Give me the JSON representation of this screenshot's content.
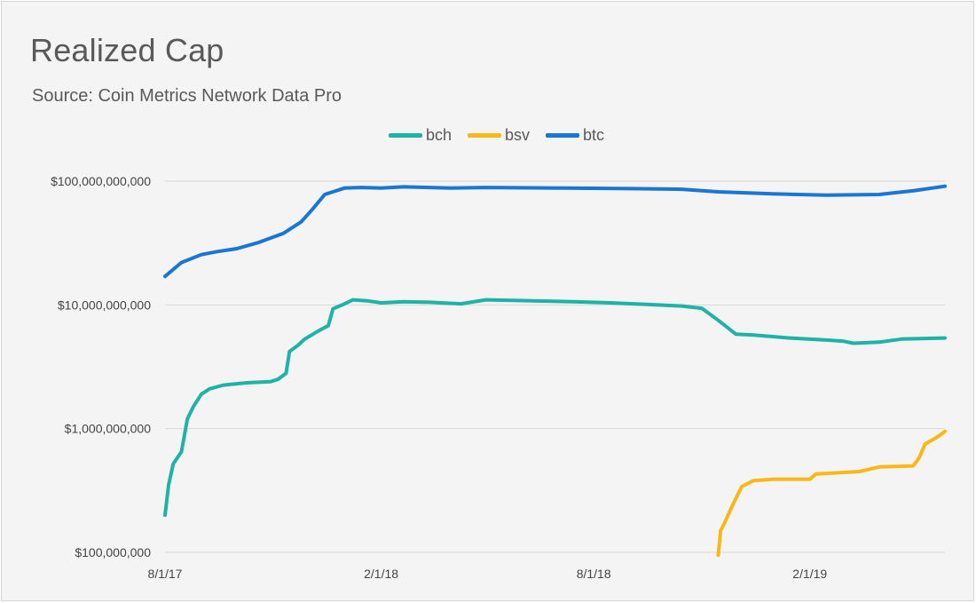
{
  "chart_data": {
    "type": "line",
    "title": "Realized Cap",
    "subtitle": "Source: Coin Metrics Network Data Pro",
    "y_scale": "log",
    "ylim": [
      100000000,
      100000000000
    ],
    "y_ticks": [
      {
        "value": 100000000000,
        "label": "$100,000,000,000"
      },
      {
        "value": 10000000000,
        "label": "$10,000,000,000"
      },
      {
        "value": 1000000000,
        "label": "$1,000,000,000"
      },
      {
        "value": 100000000,
        "label": "$100,000,000"
      }
    ],
    "xlim": [
      "2017-08-01",
      "2019-05-27"
    ],
    "x_ticks": [
      {
        "value": "2017-08-01",
        "label": "8/1/17"
      },
      {
        "value": "2018-02-01",
        "label": "2/1/18"
      },
      {
        "value": "2018-08-01",
        "label": "8/1/18"
      },
      {
        "value": "2019-02-01",
        "label": "2/1/19"
      }
    ],
    "grid": true,
    "legend": "top",
    "series": [
      {
        "name": "bch",
        "color": "#1eb3a6",
        "points": [
          [
            "2017-08-01",
            200000000
          ],
          [
            "2017-08-04",
            350000000
          ],
          [
            "2017-08-08",
            520000000
          ],
          [
            "2017-08-15",
            650000000
          ],
          [
            "2017-08-20",
            1200000000
          ],
          [
            "2017-08-25",
            1500000000
          ],
          [
            "2017-09-01",
            1900000000
          ],
          [
            "2017-09-08",
            2100000000
          ],
          [
            "2017-09-20",
            2250000000
          ],
          [
            "2017-10-10",
            2350000000
          ],
          [
            "2017-10-30",
            2400000000
          ],
          [
            "2017-11-05",
            2500000000
          ],
          [
            "2017-11-12",
            2800000000
          ],
          [
            "2017-11-15",
            4200000000
          ],
          [
            "2017-11-22",
            4700000000
          ],
          [
            "2017-11-28",
            5300000000
          ],
          [
            "2017-12-10",
            6200000000
          ],
          [
            "2017-12-18",
            6800000000
          ],
          [
            "2017-12-22",
            9300000000
          ],
          [
            "2018-01-01",
            10200000000
          ],
          [
            "2018-01-08",
            11000000000
          ],
          [
            "2018-01-20",
            10800000000
          ],
          [
            "2018-02-01",
            10400000000
          ],
          [
            "2018-02-20",
            10600000000
          ],
          [
            "2018-03-15",
            10500000000
          ],
          [
            "2018-04-10",
            10200000000
          ],
          [
            "2018-05-01",
            11000000000
          ],
          [
            "2018-05-20",
            10900000000
          ],
          [
            "2018-07-15",
            10600000000
          ],
          [
            "2018-08-15",
            10400000000
          ],
          [
            "2018-09-15",
            10100000000
          ],
          [
            "2018-10-15",
            9800000000
          ],
          [
            "2018-11-01",
            9400000000
          ],
          [
            "2018-11-15",
            7500000000
          ],
          [
            "2018-11-30",
            5800000000
          ],
          [
            "2018-12-15",
            5700000000
          ],
          [
            "2019-01-15",
            5400000000
          ],
          [
            "2019-02-15",
            5200000000
          ],
          [
            "2019-03-01",
            5100000000
          ],
          [
            "2019-03-10",
            4900000000
          ],
          [
            "2019-04-01",
            5000000000
          ],
          [
            "2019-04-20",
            5300000000
          ],
          [
            "2019-05-27",
            5400000000
          ]
        ]
      },
      {
        "name": "bsv",
        "color": "#f8b817",
        "points": [
          [
            "2018-11-15",
            95000000
          ],
          [
            "2018-11-17",
            150000000
          ],
          [
            "2018-11-20",
            170000000
          ],
          [
            "2018-11-28",
            250000000
          ],
          [
            "2018-12-05",
            340000000
          ],
          [
            "2018-12-15",
            380000000
          ],
          [
            "2019-01-01",
            390000000
          ],
          [
            "2019-02-01",
            390000000
          ],
          [
            "2019-02-06",
            430000000
          ],
          [
            "2019-03-15",
            450000000
          ],
          [
            "2019-04-01",
            490000000
          ],
          [
            "2019-04-30",
            500000000
          ],
          [
            "2019-05-05",
            580000000
          ],
          [
            "2019-05-10",
            750000000
          ],
          [
            "2019-05-20",
            850000000
          ],
          [
            "2019-05-27",
            950000000
          ]
        ]
      },
      {
        "name": "btc",
        "color": "#1976d2",
        "points": [
          [
            "2017-08-01",
            17000000000
          ],
          [
            "2017-08-15",
            22000000000
          ],
          [
            "2017-09-01",
            25500000000
          ],
          [
            "2017-09-15",
            27000000000
          ],
          [
            "2017-10-01",
            28500000000
          ],
          [
            "2017-10-20",
            32000000000
          ],
          [
            "2017-11-10",
            38000000000
          ],
          [
            "2017-11-25",
            47000000000
          ],
          [
            "2017-12-05",
            60000000000
          ],
          [
            "2017-12-15",
            78000000000
          ],
          [
            "2018-01-01",
            88000000000
          ],
          [
            "2018-01-15",
            89000000000
          ],
          [
            "2018-02-01",
            88000000000
          ],
          [
            "2018-02-20",
            90000000000
          ],
          [
            "2018-04-01",
            88000000000
          ],
          [
            "2018-05-01",
            89000000000
          ],
          [
            "2018-07-01",
            88000000000
          ],
          [
            "2018-09-01",
            87000000000
          ],
          [
            "2018-10-15",
            86000000000
          ],
          [
            "2018-11-15",
            82000000000
          ],
          [
            "2018-12-31",
            79000000000
          ],
          [
            "2019-02-15",
            77000000000
          ],
          [
            "2019-04-01",
            78000000000
          ],
          [
            "2019-05-01",
            84000000000
          ],
          [
            "2019-05-27",
            91000000000
          ]
        ]
      }
    ]
  }
}
